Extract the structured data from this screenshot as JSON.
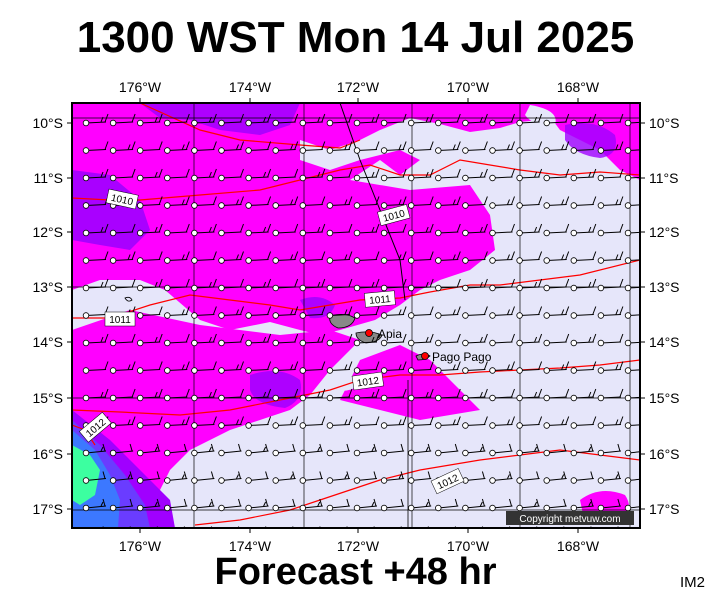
{
  "header": {
    "title": "1300 WST Mon 14 Jul 2025"
  },
  "footer": {
    "forecast": "Forecast +48 hr",
    "code": "IM2"
  },
  "map": {
    "longitude_labels": [
      "176°W",
      "174°W",
      "172°W",
      "170°W",
      "168°W"
    ],
    "latitude_labels": [
      "10°S",
      "11°S",
      "12°S",
      "13°S",
      "14°S",
      "15°S",
      "16°S",
      "17°S"
    ],
    "places": [
      {
        "name": "Apia"
      },
      {
        "name": "Pago Pago"
      }
    ],
    "isobar_labels": [
      "1010",
      "1010",
      "1011",
      "1011",
      "1012",
      "1012",
      "1012"
    ],
    "copyright": "Copyright metvuw.com",
    "colors": {
      "background": "#e6e6fa",
      "moderate": "#ff00ff",
      "heavy": "#a000ff",
      "very_heavy": "#6a3cff",
      "extreme": "#3c78ff",
      "peak": "#3cffa0",
      "isobar": "#ff0000",
      "coast_fill": "#888888"
    }
  }
}
